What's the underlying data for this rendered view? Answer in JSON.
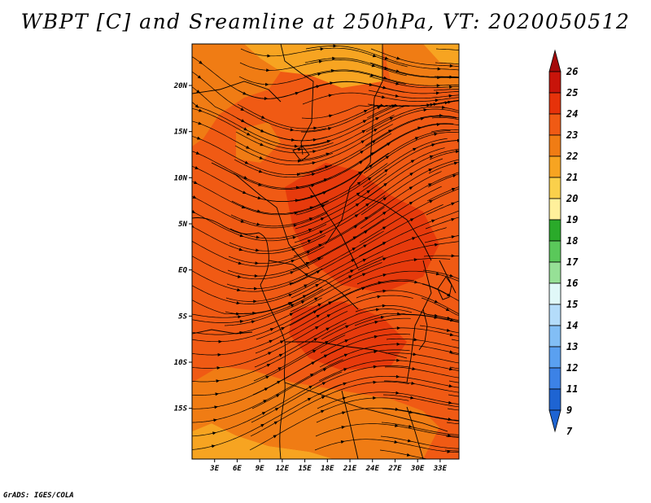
{
  "title": "WBPT [C] and Sreamline at 250hPa, VT: 2020050512",
  "credit": "GrADS: IGES/COLA",
  "map": {
    "lon_range": [
      0,
      35.5
    ],
    "lat_range": [
      -20.5,
      24.5
    ],
    "x_ticks": [
      "3E",
      "6E",
      "9E",
      "12E",
      "15E",
      "18E",
      "21E",
      "24E",
      "27E",
      "30E",
      "33E"
    ],
    "x_tick_values": [
      3,
      6,
      9,
      12,
      15,
      18,
      21,
      24,
      27,
      30,
      33
    ],
    "y_ticks": [
      "20N",
      "15N",
      "10N",
      "5N",
      "EQ",
      "5S",
      "10S",
      "15S"
    ],
    "y_tick_values": [
      20,
      15,
      10,
      5,
      0,
      -5,
      -10,
      -15
    ],
    "background_color": "#f05a14",
    "warm_regions_color": "#f07c14",
    "hot_regions_color": "#e63a0c",
    "mild_regions_color": "#f7a421",
    "line_color": "#000000"
  },
  "colorbar": {
    "labels": [
      "26",
      "25",
      "24",
      "23",
      "22",
      "21",
      "20",
      "19",
      "18",
      "17",
      "16",
      "15",
      "14",
      "13",
      "12",
      "11",
      "9",
      "7"
    ],
    "colors": [
      "#a50a0a",
      "#c8140a",
      "#e6320a",
      "#f05a14",
      "#f07c14",
      "#f7a421",
      "#fad04b",
      "#fff09b",
      "#2aaa2a",
      "#5ac85a",
      "#96e096",
      "#e0f8f8",
      "#b4dcfa",
      "#82bef5",
      "#5aa0f0",
      "#3c82e6",
      "#1e64d2",
      "#1e64d2"
    ]
  }
}
